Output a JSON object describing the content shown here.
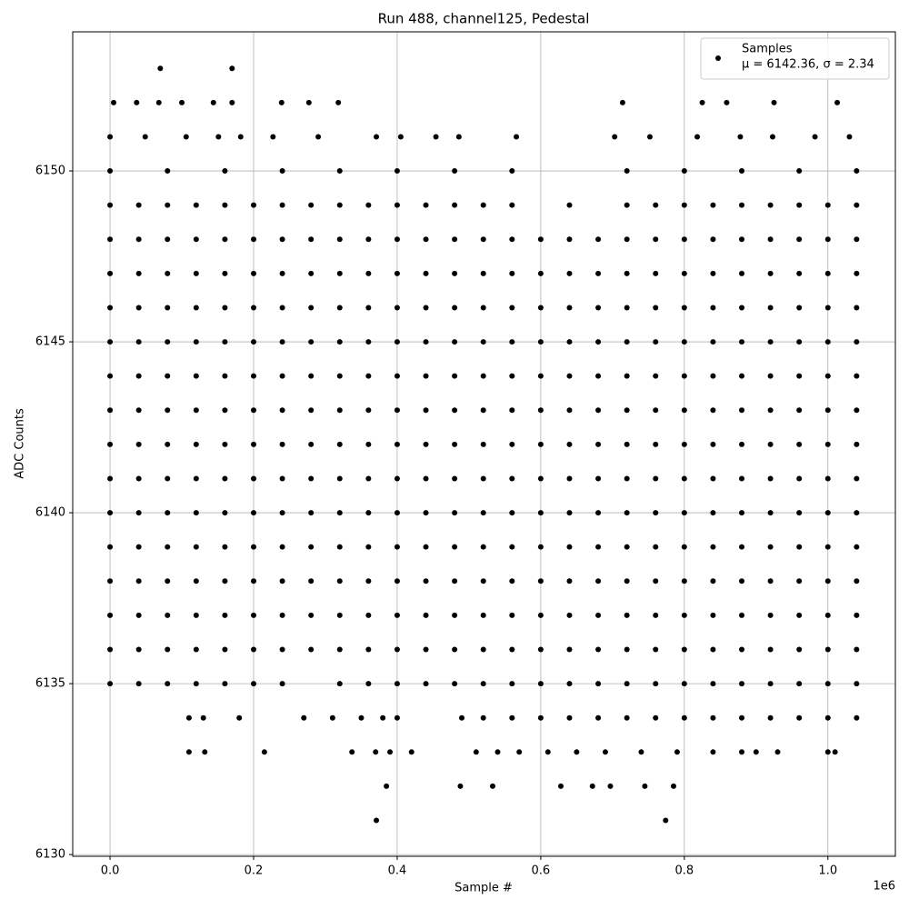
{
  "chart_data": {
    "type": "scatter",
    "title": "Run 488, channel125, Pedestal",
    "x_label": "Sample #",
    "y_label": "ADC Counts",
    "x_offset_label": "1e6",
    "xlim": [
      -52000,
      1094000
    ],
    "ylim": [
      6129.95,
      6154.07
    ],
    "xticks": [
      {
        "value": 0,
        "label": "0.0"
      },
      {
        "value": 200000,
        "label": "0.2"
      },
      {
        "value": 400000,
        "label": "0.4"
      },
      {
        "value": 600000,
        "label": "0.6"
      },
      {
        "value": 800000,
        "label": "0.8"
      },
      {
        "value": 1000000,
        "label": "1.0"
      }
    ],
    "yticks": [
      6130,
      6135,
      6140,
      6145,
      6150
    ],
    "grid": true,
    "legend_position": "upper right",
    "legend_note": "μ = 6142.36, σ = 2.34",
    "series": [
      {
        "name": "Samples",
        "color": "#000000",
        "x": [
          0,
          40000,
          80000,
          120000,
          160000,
          200000,
          240000,
          280000,
          320000,
          360000,
          400000,
          440000,
          480000,
          520000,
          560000,
          600000,
          640000,
          680000,
          720000,
          760000,
          800000,
          840000,
          880000,
          920000,
          960000,
          1000000,
          1040000,
          0,
          40000,
          80000,
          120000,
          160000,
          200000,
          240000,
          280000,
          320000,
          360000,
          400000,
          440000,
          480000,
          520000,
          560000,
          600000,
          640000,
          680000,
          720000,
          760000,
          800000,
          840000,
          880000,
          920000,
          960000,
          1000000,
          1040000,
          0,
          40000,
          80000,
          120000,
          160000,
          200000,
          240000,
          280000,
          320000,
          360000,
          400000,
          440000,
          480000,
          520000,
          560000,
          600000,
          640000,
          680000,
          720000,
          760000,
          800000,
          840000,
          880000,
          920000,
          960000,
          1000000,
          1040000,
          0,
          40000,
          80000,
          120000,
          160000,
          200000,
          240000,
          280000,
          320000,
          360000,
          400000,
          440000,
          480000,
          520000,
          560000,
          600000,
          640000,
          680000,
          720000,
          760000,
          800000,
          840000,
          880000,
          920000,
          960000,
          1000000,
          1040000,
          0,
          40000,
          80000,
          120000,
          160000,
          200000,
          240000,
          280000,
          320000,
          360000,
          400000,
          440000,
          480000,
          520000,
          560000,
          600000,
          640000,
          680000,
          720000,
          760000,
          800000,
          840000,
          880000,
          920000,
          960000,
          1000000,
          1040000,
          0,
          40000,
          80000,
          120000,
          160000,
          200000,
          240000,
          280000,
          320000,
          360000,
          400000,
          440000,
          480000,
          520000,
          560000,
          600000,
          640000,
          680000,
          720000,
          760000,
          800000,
          840000,
          880000,
          920000,
          960000,
          1000000,
          1040000,
          0,
          40000,
          80000,
          120000,
          160000,
          200000,
          240000,
          280000,
          320000,
          360000,
          400000,
          440000,
          480000,
          520000,
          560000,
          600000,
          640000,
          680000,
          720000,
          760000,
          800000,
          840000,
          880000,
          920000,
          960000,
          1000000,
          1040000,
          0,
          40000,
          80000,
          120000,
          160000,
          200000,
          240000,
          280000,
          320000,
          360000,
          400000,
          440000,
          480000,
          520000,
          560000,
          600000,
          640000,
          680000,
          720000,
          760000,
          800000,
          840000,
          880000,
          920000,
          960000,
          1000000,
          1040000,
          0,
          40000,
          80000,
          120000,
          160000,
          200000,
          240000,
          280000,
          320000,
          360000,
          400000,
          440000,
          480000,
          520000,
          560000,
          600000,
          640000,
          680000,
          720000,
          760000,
          800000,
          840000,
          880000,
          920000,
          960000,
          1000000,
          1040000,
          0,
          40000,
          80000,
          120000,
          160000,
          200000,
          240000,
          280000,
          320000,
          360000,
          400000,
          440000,
          480000,
          520000,
          560000,
          600000,
          640000,
          680000,
          720000,
          760000,
          800000,
          840000,
          880000,
          920000,
          960000,
          1000000,
          1040000,
          0,
          40000,
          80000,
          120000,
          160000,
          200000,
          240000,
          280000,
          320000,
          360000,
          400000,
          440000,
          480000,
          520000,
          560000,
          600000,
          640000,
          680000,
          720000,
          760000,
          800000,
          840000,
          880000,
          920000,
          960000,
          1000000,
          1040000,
          0,
          40000,
          80000,
          120000,
          160000,
          200000,
          240000,
          280000,
          320000,
          360000,
          400000,
          440000,
          480000,
          520000,
          560000,
          600000,
          640000,
          680000,
          720000,
          760000,
          800000,
          840000,
          880000,
          920000,
          960000,
          1000000,
          1040000,
          0,
          40000,
          80000,
          120000,
          160000,
          200000,
          240000,
          280000,
          320000,
          360000,
          400000,
          440000,
          480000,
          520000,
          560000,
          600000,
          640000,
          680000,
          720000,
          760000,
          800000,
          840000,
          880000,
          920000,
          960000,
          1000000,
          1040000,
          0,
          40000,
          80000,
          120000,
          160000,
          200000,
          240000,
          280000,
          320000,
          360000,
          400000,
          440000,
          480000,
          520000,
          560000,
          640000,
          720000,
          760000,
          800000,
          840000,
          880000,
          920000,
          960000,
          1000000,
          1040000,
          0,
          40000,
          80000,
          120000,
          160000,
          200000,
          240000,
          320000,
          360000,
          400000,
          440000,
          480000,
          520000,
          560000,
          600000,
          640000,
          680000,
          720000,
          760000,
          800000,
          840000,
          880000,
          920000,
          960000,
          1000000,
          1040000,
          0,
          80000,
          160000,
          240000,
          320000,
          400000,
          480000,
          560000,
          720000,
          800000,
          880000,
          960000,
          1040000,
          0,
          49000,
          106000,
          151000,
          182000,
          227000,
          290000,
          371000,
          405000,
          454000,
          486000,
          566000,
          703000,
          752000,
          818000,
          878000,
          923000,
          982000,
          1030000,
          5000,
          37000,
          68000,
          100000,
          144000,
          170000,
          239000,
          277000,
          318000,
          714000,
          825000,
          859000,
          925000,
          1013000,
          70000,
          170000,
          110000,
          130000,
          180000,
          270000,
          310000,
          350000,
          380000,
          400000,
          490000,
          520000,
          560000,
          600000,
          640000,
          680000,
          720000,
          760000,
          800000,
          840000,
          880000,
          920000,
          960000,
          1000000,
          1040000,
          110000,
          132000,
          215000,
          337000,
          370000,
          390000,
          420000,
          510000,
          540000,
          570000,
          610000,
          650000,
          690000,
          740000,
          790000,
          840000,
          880000,
          900000,
          930000,
          1000000,
          1010000,
          385000,
          488000,
          533000,
          628000,
          672000,
          697000,
          745000,
          785000,
          371000,
          774000
        ],
        "values": [
          6148,
          6148,
          6148,
          6148,
          6148,
          6148,
          6148,
          6148,
          6148,
          6148,
          6148,
          6148,
          6148,
          6148,
          6148,
          6148,
          6148,
          6148,
          6148,
          6148,
          6148,
          6148,
          6148,
          6148,
          6148,
          6148,
          6148,
          6147,
          6147,
          6147,
          6147,
          6147,
          6147,
          6147,
          6147,
          6147,
          6147,
          6147,
          6147,
          6147,
          6147,
          6147,
          6147,
          6147,
          6147,
          6147,
          6147,
          6147,
          6147,
          6147,
          6147,
          6147,
          6147,
          6147,
          6146,
          6146,
          6146,
          6146,
          6146,
          6146,
          6146,
          6146,
          6146,
          6146,
          6146,
          6146,
          6146,
          6146,
          6146,
          6146,
          6146,
          6146,
          6146,
          6146,
          6146,
          6146,
          6146,
          6146,
          6146,
          6146,
          6146,
          6145,
          6145,
          6145,
          6145,
          6145,
          6145,
          6145,
          6145,
          6145,
          6145,
          6145,
          6145,
          6145,
          6145,
          6145,
          6145,
          6145,
          6145,
          6145,
          6145,
          6145,
          6145,
          6145,
          6145,
          6145,
          6145,
          6145,
          6144,
          6144,
          6144,
          6144,
          6144,
          6144,
          6144,
          6144,
          6144,
          6144,
          6144,
          6144,
          6144,
          6144,
          6144,
          6144,
          6144,
          6144,
          6144,
          6144,
          6144,
          6144,
          6144,
          6144,
          6144,
          6144,
          6144,
          6143,
          6143,
          6143,
          6143,
          6143,
          6143,
          6143,
          6143,
          6143,
          6143,
          6143,
          6143,
          6143,
          6143,
          6143,
          6143,
          6143,
          6143,
          6143,
          6143,
          6143,
          6143,
          6143,
          6143,
          6143,
          6143,
          6143,
          6142,
          6142,
          6142,
          6142,
          6142,
          6142,
          6142,
          6142,
          6142,
          6142,
          6142,
          6142,
          6142,
          6142,
          6142,
          6142,
          6142,
          6142,
          6142,
          6142,
          6142,
          6142,
          6142,
          6142,
          6142,
          6142,
          6142,
          6141,
          6141,
          6141,
          6141,
          6141,
          6141,
          6141,
          6141,
          6141,
          6141,
          6141,
          6141,
          6141,
          6141,
          6141,
          6141,
          6141,
          6141,
          6141,
          6141,
          6141,
          6141,
          6141,
          6141,
          6141,
          6141,
          6141,
          6140,
          6140,
          6140,
          6140,
          6140,
          6140,
          6140,
          6140,
          6140,
          6140,
          6140,
          6140,
          6140,
          6140,
          6140,
          6140,
          6140,
          6140,
          6140,
          6140,
          6140,
          6140,
          6140,
          6140,
          6140,
          6140,
          6140,
          6139,
          6139,
          6139,
          6139,
          6139,
          6139,
          6139,
          6139,
          6139,
          6139,
          6139,
          6139,
          6139,
          6139,
          6139,
          6139,
          6139,
          6139,
          6139,
          6139,
          6139,
          6139,
          6139,
          6139,
          6139,
          6139,
          6139,
          6138,
          6138,
          6138,
          6138,
          6138,
          6138,
          6138,
          6138,
          6138,
          6138,
          6138,
          6138,
          6138,
          6138,
          6138,
          6138,
          6138,
          6138,
          6138,
          6138,
          6138,
          6138,
          6138,
          6138,
          6138,
          6138,
          6138,
          6137,
          6137,
          6137,
          6137,
          6137,
          6137,
          6137,
          6137,
          6137,
          6137,
          6137,
          6137,
          6137,
          6137,
          6137,
          6137,
          6137,
          6137,
          6137,
          6137,
          6137,
          6137,
          6137,
          6137,
          6137,
          6137,
          6137,
          6136,
          6136,
          6136,
          6136,
          6136,
          6136,
          6136,
          6136,
          6136,
          6136,
          6136,
          6136,
          6136,
          6136,
          6136,
          6136,
          6136,
          6136,
          6136,
          6136,
          6136,
          6136,
          6136,
          6136,
          6136,
          6136,
          6136,
          6149,
          6149,
          6149,
          6149,
          6149,
          6149,
          6149,
          6149,
          6149,
          6149,
          6149,
          6149,
          6149,
          6149,
          6149,
          6149,
          6149,
          6149,
          6149,
          6149,
          6149,
          6149,
          6149,
          6149,
          6149,
          6135,
          6135,
          6135,
          6135,
          6135,
          6135,
          6135,
          6135,
          6135,
          6135,
          6135,
          6135,
          6135,
          6135,
          6135,
          6135,
          6135,
          6135,
          6135,
          6135,
          6135,
          6135,
          6135,
          6135,
          6135,
          6135,
          6150,
          6150,
          6150,
          6150,
          6150,
          6150,
          6150,
          6150,
          6150,
          6150,
          6150,
          6150,
          6150,
          6151,
          6151,
          6151,
          6151,
          6151,
          6151,
          6151,
          6151,
          6151,
          6151,
          6151,
          6151,
          6151,
          6151,
          6151,
          6151,
          6151,
          6151,
          6151,
          6152,
          6152,
          6152,
          6152,
          6152,
          6152,
          6152,
          6152,
          6152,
          6152,
          6152,
          6152,
          6152,
          6152,
          6153,
          6153,
          6134,
          6134,
          6134,
          6134,
          6134,
          6134,
          6134,
          6134,
          6134,
          6134,
          6134,
          6134,
          6134,
          6134,
          6134,
          6134,
          6134,
          6134,
          6134,
          6134,
          6134,
          6134,
          6134,
          6133,
          6133,
          6133,
          6133,
          6133,
          6133,
          6133,
          6133,
          6133,
          6133,
          6133,
          6133,
          6133,
          6133,
          6133,
          6133,
          6133,
          6133,
          6133,
          6133,
          6133,
          6132,
          6132,
          6132,
          6132,
          6132,
          6132,
          6132,
          6132,
          6131,
          6131
        ]
      }
    ]
  }
}
